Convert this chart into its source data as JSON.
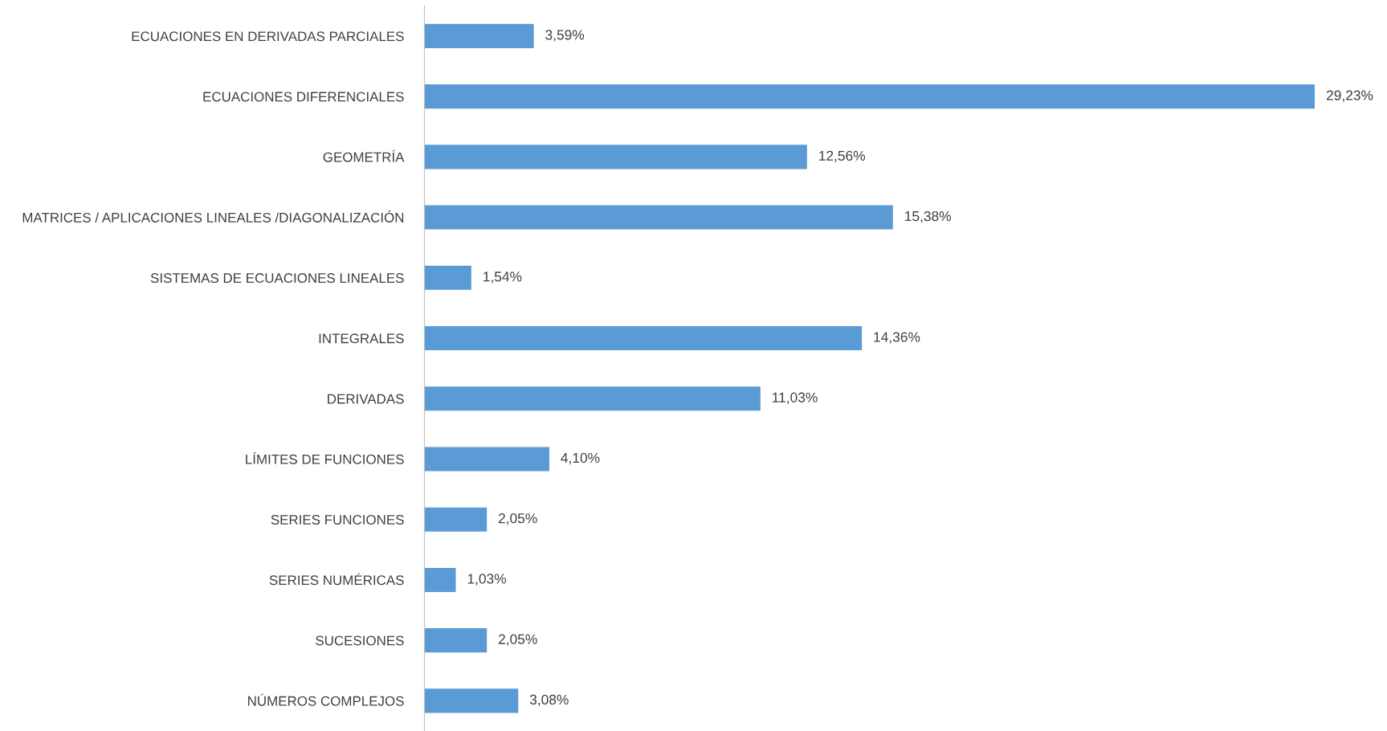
{
  "chart_data": {
    "type": "bar",
    "orientation": "horizontal",
    "color": "#5b9bd5",
    "categories": [
      "ECUACIONES EN DERIVADAS PARCIALES",
      "ECUACIONES DIFERENCIALES",
      "GEOMETRÍA",
      "MATRICES / APLICACIONES LINEALES /DIAGONALIZACIÓN",
      "SISTEMAS DE ECUACIONES LINEALES",
      "INTEGRALES",
      "DERIVADAS",
      "LÍMITES DE FUNCIONES",
      "SERIES FUNCIONES",
      "SERIES NUMÉRICAS",
      "SUCESIONES",
      "NÚMEROS COMPLEJOS"
    ],
    "values": [
      3.59,
      29.23,
      12.56,
      15.38,
      1.54,
      14.36,
      11.03,
      4.1,
      2.05,
      1.03,
      2.05,
      3.08
    ],
    "value_labels": [
      "3,59%",
      "29,23%",
      "12,56%",
      "15,38%",
      "1,54%",
      "14,36%",
      "11,03%",
      "4,10%",
      "2,05%",
      "1,03%",
      "2,05%",
      "3,08%"
    ],
    "grid": false
  }
}
